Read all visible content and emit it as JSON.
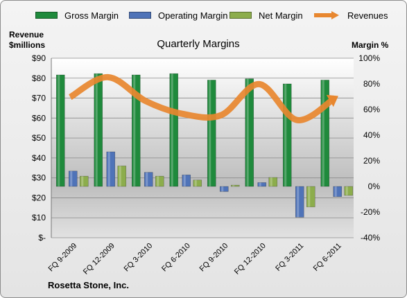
{
  "chart_data": {
    "type": "bar",
    "title": "Quarterly Margins",
    "ylabel_left": "Revenue $millions",
    "ylabel_right": "Margin %",
    "footer": "Rosetta Stone, Inc.",
    "categories": [
      "FQ 9-2009",
      "FQ 12-2009",
      "FQ 3-2010",
      "FQ 6-2010",
      "FQ 9-2010",
      "FQ 12-2010",
      "FQ 3-2011",
      "FQ 6-2011"
    ],
    "left_axis": {
      "ticks": [
        "$-",
        "$10",
        "$20",
        "$30",
        "$40",
        "$50",
        "$60",
        "$70",
        "$80",
        "$90"
      ],
      "ylim": [
        0,
        90
      ]
    },
    "right_axis": {
      "ticks": [
        "-40%",
        "-20%",
        "0%",
        "20%",
        "40%",
        "60%",
        "80%",
        "100%"
      ],
      "ylim": [
        -40,
        100
      ]
    },
    "series": [
      {
        "name": "Gross Margin",
        "axis": "right",
        "kind": "bar",
        "color": "#1f8a3c",
        "values": [
          87,
          88,
          87,
          88,
          83,
          84,
          80,
          83
        ]
      },
      {
        "name": "Operating Margin",
        "axis": "right",
        "kind": "bar",
        "color": "#4f73b8",
        "values": [
          12,
          27,
          11,
          9,
          -4,
          3,
          -24,
          -8
        ]
      },
      {
        "name": "Net Margin",
        "axis": "right",
        "kind": "bar",
        "color": "#8cad4c",
        "values": [
          8,
          16,
          8,
          5,
          1,
          7,
          -16,
          -7
        ]
      },
      {
        "name": "Revenues",
        "axis": "left",
        "kind": "line",
        "color": "#e8872f",
        "values": [
          70.5,
          80.5,
          68.5,
          62,
          61.5,
          77,
          59,
          70
        ]
      }
    ],
    "grid": true,
    "legend_position": "top"
  }
}
